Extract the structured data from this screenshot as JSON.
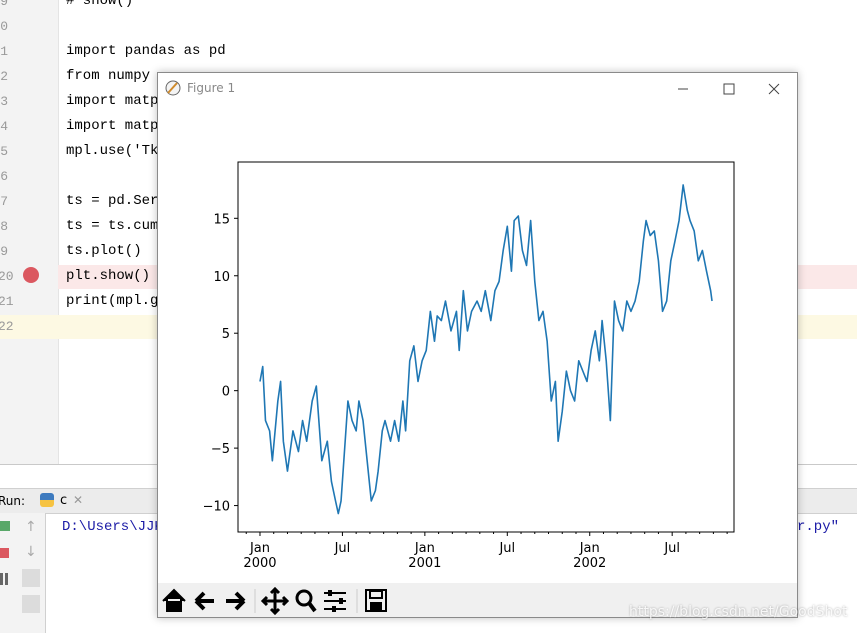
{
  "editor": {
    "lines": [
      {
        "number": "9",
        "code": "# show()"
      },
      {
        "number": "0"
      },
      {
        "number": "1",
        "code": "import pandas as pd"
      },
      {
        "number": "2",
        "code": "from numpy "
      },
      {
        "number": "3",
        "code": "import matp"
      },
      {
        "number": "4",
        "code": "import matp"
      },
      {
        "number": "5",
        "code": "mpl.use('Tk"
      },
      {
        "number": "6"
      },
      {
        "number": "7",
        "code": "ts = pd.Seri"
      },
      {
        "number": "8",
        "code": "ts = ts.cums"
      },
      {
        "number": "9",
        "code": "ts.plot()"
      },
      {
        "number": "20",
        "code": "plt.show()"
      },
      {
        "number": "21",
        "code": "print(mpl.ge"
      },
      {
        "number": "22"
      }
    ]
  },
  "run_panel": {
    "label": "Run:",
    "tab": "c",
    "output_start": "D:\\Users\\JJK",
    "output_end": "r.py\""
  },
  "figure": {
    "title": "Figure 1"
  },
  "watermark": "https://blog.csdn.net/GoodShot",
  "chart_data": {
    "type": "line",
    "x": [
      0,
      0.2,
      0.4,
      0.7,
      0.9,
      1.3,
      1.5,
      1.7,
      2.0,
      2.4,
      2.8,
      3.1,
      3.4,
      3.8,
      4.1,
      4.5,
      4.9,
      5.2,
      5.5,
      5.7,
      5.9,
      6.2,
      6.4,
      6.7,
      7.0,
      7.2,
      7.5,
      7.8,
      8.1,
      8.4,
      8.6,
      8.9,
      9.1,
      9.5,
      9.8,
      10.1,
      10.4,
      10.6,
      10.9,
      11.2,
      11.5,
      11.8,
      12.1,
      12.4,
      12.7,
      12.9,
      13.2,
      13.5,
      13.9,
      14.3,
      14.5,
      14.8,
      15.1,
      15.4,
      15.8,
      16.1,
      16.4,
      16.8,
      17.1,
      17.4,
      17.7,
      18.0,
      18.3,
      18.5,
      18.8,
      19.1,
      19.4,
      19.7,
      20.0,
      20.3,
      20.6,
      20.9,
      21.2,
      21.5,
      21.7,
      22.0,
      22.3,
      22.6,
      22.9,
      23.2,
      23.5,
      23.8,
      24.1,
      24.4,
      24.7,
      24.9,
      25.2,
      25.5,
      25.8,
      26.1,
      26.4,
      26.7,
      27.0,
      27.3,
      27.6,
      27.9,
      28.1,
      28.4,
      28.7,
      29.0,
      29.3,
      29.6,
      29.9,
      30.2,
      30.5,
      30.8,
      31.1,
      31.3,
      31.6,
      31.9,
      32.2,
      32.5,
      32.8,
      32.9
    ],
    "series": [
      {
        "color": "#1f77b4",
        "values": [
          0.8,
          2.1,
          -2.6,
          -3.5,
          -6.1,
          -0.9,
          0.8,
          -4.4,
          -7.0,
          -3.5,
          -5.3,
          -2.6,
          -4.4,
          -0.9,
          0.4,
          -6.1,
          -4.4,
          -7.9,
          -9.6,
          -10.7,
          -9.6,
          -4.4,
          -0.9,
          -2.6,
          -3.5,
          -0.9,
          -2.6,
          -6.1,
          -9.6,
          -8.7,
          -7.0,
          -3.5,
          -2.6,
          -4.4,
          -2.6,
          -4.4,
          -0.9,
          -3.5,
          2.6,
          3.9,
          0.8,
          2.6,
          3.5,
          6.9,
          4.3,
          6.5,
          6.1,
          7.8,
          5.2,
          6.9,
          3.5,
          8.7,
          5.2,
          6.9,
          7.8,
          6.9,
          8.7,
          6.1,
          8.7,
          9.5,
          12.2,
          14.3,
          10.4,
          14.8,
          15.2,
          12.2,
          10.9,
          14.8,
          9.5,
          6.1,
          6.9,
          4.3,
          -0.9,
          0.8,
          -4.4,
          -1.8,
          1.7,
          0.0,
          -0.9,
          2.6,
          1.7,
          0.8,
          3.5,
          5.2,
          2.6,
          6.1,
          2.6,
          -2.6,
          7.8,
          6.1,
          5.2,
          7.8,
          6.9,
          7.8,
          9.5,
          13.0,
          14.8,
          13.5,
          13.9,
          11.3,
          6.9,
          7.8,
          11.3,
          13.0,
          14.8,
          17.9,
          15.7,
          14.8,
          13.9,
          11.3,
          12.2,
          10.4,
          8.7,
          7.8
        ]
      }
    ],
    "xlim": [
      -1.6,
      34.5
    ],
    "xticks": [
      {
        "value": 0,
        "label": "Jan",
        "year": "2000"
      },
      {
        "value": 6,
        "label": "Jul"
      },
      {
        "value": 12,
        "label": "Jan",
        "year": "2001"
      },
      {
        "value": 18,
        "label": "Jul"
      },
      {
        "value": 24,
        "label": "Jan",
        "year": "2002"
      },
      {
        "value": 30,
        "label": "Jul"
      }
    ],
    "xminorticks": [
      -1,
      1,
      2,
      3,
      4,
      5,
      7,
      8,
      9,
      10,
      11,
      13,
      14,
      15,
      16,
      17,
      19,
      20,
      21,
      22,
      23,
      25,
      26,
      27,
      28,
      29,
      31,
      32,
      33,
      34
    ],
    "ylim": [
      -12.3,
      19.9
    ],
    "yticks": [
      {
        "value": -10,
        "label": "−10"
      },
      {
        "value": -5,
        "label": "−5"
      },
      0,
      5,
      10,
      15
    ]
  }
}
